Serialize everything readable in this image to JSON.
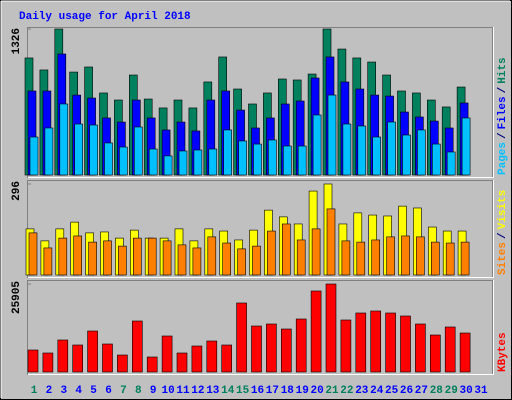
{
  "chart_data": [
    {
      "type": "bar",
      "title": "Daily usage for April 2018",
      "legend_separator": "/",
      "ylim": [
        0,
        1326
      ],
      "yticks": [
        1326
      ],
      "series": [
        {
          "name": "Hits",
          "color": "#00805c",
          "values": [
            1063,
            954,
            1326,
            935,
            981,
            745,
            681,
            908,
            690,
            609,
            681,
            609,
            845,
            1072,
            781,
            645,
            745,
            872,
            863,
            917,
            1326,
            1144,
            1063,
            1026,
            908,
            763,
            745,
            681,
            618,
            799,
            null
          ]
        },
        {
          "name": "Files",
          "color": "#0000ff",
          "values": [
            763,
            763,
            1099,
            726,
            699,
            518,
            481,
            681,
            518,
            409,
            481,
            400,
            681,
            763,
            590,
            427,
            518,
            645,
            672,
            881,
            1072,
            845,
            781,
            726,
            717,
            572,
            527,
            490,
            427,
            654,
            null
          ]
        },
        {
          "name": "Pages",
          "color": "#00c0ff",
          "values": [
            345,
            427,
            645,
            463,
            454,
            291,
            254,
            436,
            236,
            173,
            218,
            227,
            236,
            409,
            309,
            281,
            318,
            263,
            263,
            545,
            726,
            463,
            445,
            345,
            481,
            363,
            409,
            281,
            209,
            518,
            null
          ]
        }
      ]
    },
    {
      "type": "bar",
      "ylim": [
        0,
        296
      ],
      "yticks": [
        296
      ],
      "series": [
        {
          "name": "Visits",
          "color": "#ffff00",
          "values": [
            150,
            111,
            150,
            172,
            137,
            140,
            120,
            146,
            120,
            120,
            150,
            111,
            150,
            143,
            114,
            146,
            211,
            189,
            166,
            273,
            296,
            166,
            202,
            195,
            192,
            224,
            218,
            156,
            143,
            143,
            null
          ]
        },
        {
          "name": "Sites",
          "color": "#ff8000",
          "values": [
            137,
            88,
            120,
            127,
            107,
            111,
            94,
            120,
            120,
            111,
            98,
            88,
            124,
            104,
            85,
            94,
            143,
            166,
            114,
            150,
            215,
            111,
            107,
            114,
            124,
            127,
            124,
            107,
            104,
            107,
            null
          ]
        }
      ]
    },
    {
      "type": "bar",
      "ylim": [
        0,
        25905
      ],
      "yticks": [
        25905
      ],
      "categories": [
        "1",
        "2",
        "3",
        "4",
        "5",
        "6",
        "7",
        "8",
        "9",
        "10",
        "11",
        "12",
        "13",
        "14",
        "15",
        "16",
        "17",
        "18",
        "19",
        "20",
        "21",
        "22",
        "23",
        "24",
        "25",
        "26",
        "27",
        "28",
        "29",
        "30",
        "31"
      ],
      "category_colors": [
        "#00805c",
        "#0000ff",
        "#0000ff",
        "#0000ff",
        "#0000ff",
        "#0000ff",
        "#00805c",
        "#00805c",
        "#0000ff",
        "#0000ff",
        "#0000ff",
        "#0000ff",
        "#0000ff",
        "#00805c",
        "#00805c",
        "#0000ff",
        "#0000ff",
        "#0000ff",
        "#0000ff",
        "#0000ff",
        "#00805c",
        "#00805c",
        "#0000ff",
        "#0000ff",
        "#0000ff",
        "#0000ff",
        "#0000ff",
        "#00805c",
        "#00805c",
        "#0000ff",
        "#0000ff"
      ],
      "series": [
        {
          "name": "KBytes",
          "color": "#ff0000",
          "values": [
            6477,
            5594,
            9421,
            7949,
            12070,
            8243,
            5005,
            15014,
            4416,
            10598,
            5594,
            7654,
            9126,
            7949,
            20314,
            13542,
            14131,
            12659,
            15603,
            23846,
            25905,
            15308,
            17369,
            17958,
            17369,
            16486,
            14131,
            10892,
            13248,
            11481,
            null
          ]
        }
      ]
    }
  ]
}
